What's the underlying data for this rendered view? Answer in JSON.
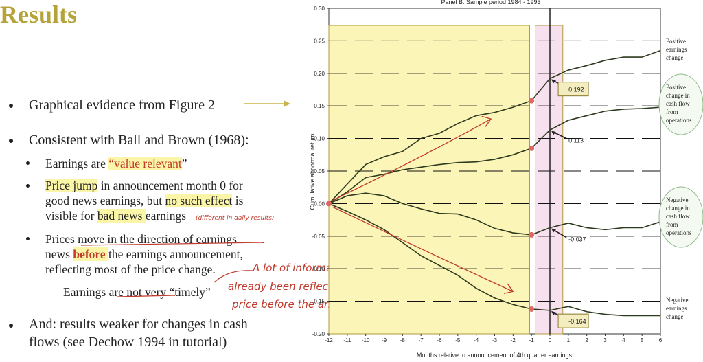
{
  "slide": {
    "title": "Results",
    "b1": "Graphical evidence from Figure 2",
    "b2": "Consistent with Ball and Brown (1968):",
    "s1_pre": "Earnings are ",
    "s1_hl": "“value relevant",
    "s1_post": "”",
    "s2_l1_hl": "Price jump",
    "s2_l1_post": " in announcement month 0 for",
    "s2_l2_pre": "good news earnings, but ",
    "s2_l2_hl": "no such effect",
    "s2_l2_post": " is",
    "s2_l3_pre": "visible for ",
    "s2_l3_hl": "bad news ",
    "s2_l3_post": "earnings",
    "s2_note": "(different in daily results)",
    "s3_l1": "Prices move in the direction of earnings",
    "s3_l2_pre": "news ",
    "s3_l2_hl": "before ",
    "s3_l2_post": "the earnings announcement,",
    "s3_l3": "reflecting most of the price change.",
    "s3_l4": "Earnings are not very “timely”",
    "hw_l1": "A lot of information has",
    "hw_l2": "already been reflected in stock",
    "hw_l3": "price before the announcement of earnings.",
    "b3_l1": "And: results weaker for changes in cash",
    "b3_l2": "flows (see Dechow 1994 in tutorial)"
  },
  "chart_data": {
    "type": "line",
    "title": "Panel B: Sample period 1984 - 1993",
    "xlabel": "Months relative to announcement of 4th quarter earnings",
    "ylabel": "Cumulative abnormal return",
    "ylim": [
      -0.2,
      0.3
    ],
    "x": [
      -12,
      -11,
      -10,
      -9,
      -8,
      -7,
      -6,
      -5,
      -4,
      -3,
      -2,
      -1,
      0,
      1,
      2,
      3,
      4,
      5,
      6
    ],
    "x_tick_labels": [
      "-12",
      "-11",
      "-10",
      "-9",
      "-8",
      "-7",
      "-6",
      "-5",
      "-4",
      "-3",
      "-2",
      "-1",
      "0",
      "1",
      "2",
      "3",
      "4",
      "5",
      "6"
    ],
    "y_tick_labels": [
      "0.30",
      "0.25",
      "0.20",
      "0.15",
      "0.10",
      "0.05",
      "0.00",
      "-0.05",
      "-0.10",
      "-0.15",
      "-0.20"
    ],
    "series": [
      {
        "name": "Positive earnings change",
        "values": [
          0,
          0.03,
          0.06,
          0.072,
          0.08,
          0.1,
          0.108,
          0.123,
          0.135,
          0.14,
          0.148,
          0.158,
          0.192,
          0.205,
          0.212,
          0.22,
          0.225,
          0.225,
          0.235
        ]
      },
      {
        "name": "Positive change in cash flow from operations",
        "values": [
          0,
          0.018,
          0.04,
          0.045,
          0.052,
          0.056,
          0.06,
          0.063,
          0.064,
          0.068,
          0.075,
          0.085,
          0.113,
          0.128,
          0.135,
          0.142,
          0.145,
          0.146,
          0.148
        ]
      },
      {
        "name": "Negative change in cash flow from operations",
        "values": [
          0,
          0.012,
          0.016,
          0.012,
          0.0,
          -0.008,
          -0.015,
          -0.016,
          -0.025,
          -0.038,
          -0.045,
          -0.048,
          -0.037,
          -0.03,
          -0.037,
          -0.04,
          -0.037,
          -0.037,
          -0.028
        ]
      },
      {
        "name": "Negative earnings change",
        "values": [
          0,
          -0.012,
          -0.025,
          -0.04,
          -0.06,
          -0.08,
          -0.095,
          -0.11,
          -0.13,
          -0.145,
          -0.155,
          -0.162,
          -0.164,
          -0.158,
          -0.166,
          -0.17,
          -0.172,
          -0.172,
          -0.172
        ]
      }
    ],
    "annotations": [
      "0.192",
      "0.113",
      "-0.037",
      "-0.164"
    ],
    "legend_labels": [
      [
        "Positive",
        "earnings",
        "change"
      ],
      [
        "Positive",
        "change in",
        "cash flow",
        "from",
        "operations"
      ],
      [
        "Negative",
        "change in",
        "cash flow",
        "from",
        "operations"
      ],
      [
        "Negative",
        "earnings",
        "change"
      ]
    ],
    "colors": {
      "series": "#2e3a1f",
      "pre_window": "#fbf5b8",
      "event_window": "#f8e1ef",
      "annotation_box": "#f3edc0",
      "ink": "#c0392b"
    }
  }
}
